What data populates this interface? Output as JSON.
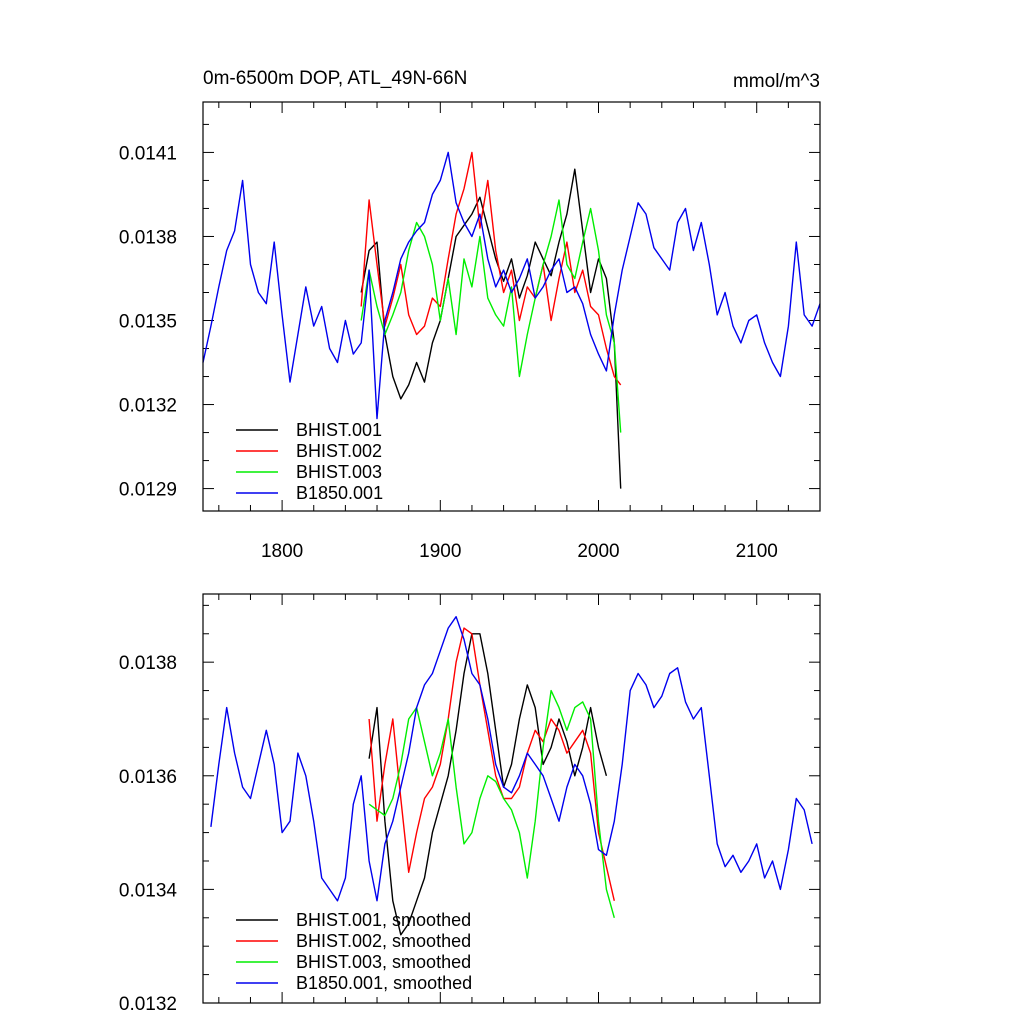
{
  "chart_data": [
    {
      "type": "line",
      "title": "0m-6500m DOP, ATL_49N-66N",
      "units": "mmol/m^3",
      "xlim": [
        1750,
        2140
      ],
      "ylim": [
        0.01282,
        0.01428
      ],
      "xticks": [
        1800,
        1900,
        2000,
        2100
      ],
      "xtick_labels": [
        "1800",
        "1900",
        "2000",
        "2100"
      ],
      "yticks": [
        0.0129,
        0.0132,
        0.0135,
        0.0138,
        0.0141
      ],
      "ytick_labels": [
        "0.0129",
        "0.0132",
        "0.0135",
        "0.0138",
        "0.0141"
      ],
      "legend_position": "bottom-left",
      "series": [
        {
          "name": "BHIST.001",
          "color": "#000000",
          "x": [
            1850,
            1855,
            1860,
            1865,
            1870,
            1875,
            1880,
            1885,
            1890,
            1895,
            1900,
            1905,
            1910,
            1915,
            1920,
            1925,
            1930,
            1935,
            1940,
            1945,
            1950,
            1955,
            1960,
            1965,
            1970,
            1975,
            1980,
            1985,
            1990,
            1995,
            2000,
            2005,
            2010,
            2014
          ],
          "y": [
            0.0136,
            0.01375,
            0.01378,
            0.01345,
            0.0133,
            0.01322,
            0.01327,
            0.01335,
            0.01328,
            0.01342,
            0.0135,
            0.01365,
            0.0138,
            0.01384,
            0.01388,
            0.01394,
            0.01383,
            0.01372,
            0.01364,
            0.01372,
            0.01358,
            0.01366,
            0.01378,
            0.01372,
            0.01366,
            0.01378,
            0.01388,
            0.01404,
            0.01382,
            0.0136,
            0.01372,
            0.01365,
            0.01342,
            0.0129
          ]
        },
        {
          "name": "BHIST.002",
          "color": "#ff0000",
          "x": [
            1850,
            1855,
            1860,
            1865,
            1870,
            1875,
            1880,
            1885,
            1890,
            1895,
            1900,
            1905,
            1910,
            1915,
            1920,
            1925,
            1930,
            1935,
            1940,
            1945,
            1950,
            1955,
            1960,
            1965,
            1970,
            1975,
            1980,
            1985,
            1990,
            1995,
            2000,
            2005,
            2010,
            2014
          ],
          "y": [
            0.01355,
            0.01393,
            0.0137,
            0.01348,
            0.01358,
            0.0137,
            0.01352,
            0.01345,
            0.01348,
            0.01358,
            0.01355,
            0.01372,
            0.01388,
            0.01397,
            0.0141,
            0.01383,
            0.014,
            0.01375,
            0.0136,
            0.01368,
            0.0135,
            0.01362,
            0.01358,
            0.0137,
            0.0135,
            0.01365,
            0.01378,
            0.0136,
            0.01368,
            0.01355,
            0.01352,
            0.0134,
            0.0133,
            0.01327
          ]
        },
        {
          "name": "BHIST.003",
          "color": "#00ee00",
          "x": [
            1850,
            1855,
            1860,
            1865,
            1870,
            1875,
            1880,
            1885,
            1890,
            1895,
            1900,
            1905,
            1910,
            1915,
            1920,
            1925,
            1930,
            1935,
            1940,
            1945,
            1950,
            1955,
            1960,
            1965,
            1970,
            1975,
            1980,
            1985,
            1990,
            1995,
            2000,
            2005,
            2010,
            2014
          ],
          "y": [
            0.0135,
            0.01368,
            0.01355,
            0.01345,
            0.01352,
            0.0136,
            0.01375,
            0.01385,
            0.0138,
            0.0137,
            0.0135,
            0.01365,
            0.01345,
            0.01372,
            0.01362,
            0.0138,
            0.01358,
            0.01352,
            0.01348,
            0.01362,
            0.0133,
            0.01345,
            0.01358,
            0.0137,
            0.0138,
            0.01393,
            0.0137,
            0.01365,
            0.01378,
            0.0139,
            0.01375,
            0.01352,
            0.01342,
            0.0131
          ]
        },
        {
          "name": "B1850.001",
          "color": "#0000ee",
          "x": [
            1750,
            1755,
            1760,
            1765,
            1770,
            1775,
            1780,
            1785,
            1790,
            1795,
            1800,
            1805,
            1810,
            1815,
            1820,
            1825,
            1830,
            1835,
            1840,
            1845,
            1850,
            1855,
            1860,
            1865,
            1870,
            1875,
            1880,
            1885,
            1890,
            1895,
            1900,
            1905,
            1910,
            1915,
            1920,
            1925,
            1930,
            1935,
            1940,
            1945,
            1950,
            1955,
            1960,
            1965,
            1970,
            1975,
            1980,
            1985,
            1990,
            1995,
            2000,
            2005,
            2010,
            2015,
            2020,
            2025,
            2030,
            2035,
            2040,
            2045,
            2050,
            2055,
            2060,
            2065,
            2070,
            2075,
            2080,
            2085,
            2090,
            2095,
            2100,
            2105,
            2110,
            2115,
            2120,
            2125,
            2130,
            2135,
            2140
          ],
          "y": [
            0.01335,
            0.01348,
            0.01362,
            0.01375,
            0.01382,
            0.014,
            0.0137,
            0.0136,
            0.01356,
            0.01378,
            0.01352,
            0.01328,
            0.01345,
            0.01362,
            0.01348,
            0.01355,
            0.0134,
            0.01335,
            0.0135,
            0.01338,
            0.01342,
            0.01368,
            0.01315,
            0.0135,
            0.0136,
            0.01372,
            0.01378,
            0.01382,
            0.01385,
            0.01395,
            0.014,
            0.0141,
            0.01392,
            0.01385,
            0.0138,
            0.01388,
            0.01372,
            0.01362,
            0.01368,
            0.0136,
            0.01365,
            0.01372,
            0.01358,
            0.01362,
            0.01368,
            0.01372,
            0.0136,
            0.01362,
            0.01356,
            0.01345,
            0.01338,
            0.01332,
            0.01352,
            0.01368,
            0.0138,
            0.01392,
            0.01388,
            0.01376,
            0.01372,
            0.01368,
            0.01385,
            0.0139,
            0.01375,
            0.01385,
            0.0137,
            0.01352,
            0.0136,
            0.01348,
            0.01342,
            0.0135,
            0.01352,
            0.01342,
            0.01335,
            0.0133,
            0.01348,
            0.01378,
            0.01352,
            0.01348,
            0.01356
          ]
        }
      ]
    },
    {
      "type": "line",
      "xlim": [
        1750,
        2140
      ],
      "ylim": [
        0.0132,
        0.01392
      ],
      "xticks": [
        1800,
        1900,
        2000,
        2100
      ],
      "yticks": [
        0.0132,
        0.0134,
        0.0136,
        0.0138
      ],
      "ytick_labels": [
        "0.0132",
        "0.0134",
        "0.0136",
        "0.0138"
      ],
      "legend_position": "bottom-left",
      "series": [
        {
          "name": "BHIST.001, smoothed",
          "color": "#000000",
          "x": [
            1855,
            1860,
            1865,
            1870,
            1875,
            1880,
            1885,
            1890,
            1895,
            1900,
            1905,
            1910,
            1915,
            1920,
            1925,
            1930,
            1935,
            1940,
            1945,
            1950,
            1955,
            1960,
            1965,
            1970,
            1975,
            1980,
            1985,
            1990,
            1995,
            2000,
            2005
          ],
          "y": [
            0.01363,
            0.01372,
            0.01352,
            0.01338,
            0.01332,
            0.01334,
            0.01338,
            0.01342,
            0.0135,
            0.01355,
            0.0136,
            0.01368,
            0.01378,
            0.01385,
            0.01385,
            0.01378,
            0.01368,
            0.01358,
            0.01362,
            0.0137,
            0.01376,
            0.01372,
            0.01362,
            0.01365,
            0.0137,
            0.01366,
            0.0136,
            0.01365,
            0.01372,
            0.01365,
            0.0136
          ]
        },
        {
          "name": "BHIST.002, smoothed",
          "color": "#ff0000",
          "x": [
            1855,
            1860,
            1865,
            1870,
            1875,
            1880,
            1885,
            1890,
            1895,
            1900,
            1905,
            1910,
            1915,
            1920,
            1925,
            1930,
            1935,
            1940,
            1945,
            1950,
            1955,
            1960,
            1965,
            1970,
            1975,
            1980,
            1985,
            1990,
            1995,
            2000,
            2005,
            2010
          ],
          "y": [
            0.0137,
            0.01352,
            0.01362,
            0.0137,
            0.01356,
            0.01343,
            0.0135,
            0.01356,
            0.01358,
            0.01362,
            0.0137,
            0.0138,
            0.01386,
            0.01385,
            0.01376,
            0.01368,
            0.0136,
            0.01356,
            0.01356,
            0.01358,
            0.01364,
            0.01368,
            0.01366,
            0.0137,
            0.01368,
            0.01364,
            0.01366,
            0.01368,
            0.01364,
            0.0135,
            0.01344,
            0.01338
          ]
        },
        {
          "name": "BHIST.003, smoothed",
          "color": "#00ee00",
          "x": [
            1855,
            1860,
            1865,
            1870,
            1875,
            1880,
            1885,
            1890,
            1895,
            1900,
            1905,
            1910,
            1915,
            1920,
            1925,
            1930,
            1935,
            1940,
            1945,
            1950,
            1955,
            1960,
            1965,
            1970,
            1975,
            1980,
            1985,
            1990,
            1995,
            2000,
            2005,
            2010
          ],
          "y": [
            0.01355,
            0.01354,
            0.01353,
            0.01356,
            0.01362,
            0.0137,
            0.01372,
            0.01366,
            0.0136,
            0.01364,
            0.0137,
            0.01358,
            0.01348,
            0.0135,
            0.01356,
            0.0136,
            0.01359,
            0.01356,
            0.01354,
            0.0135,
            0.01342,
            0.01352,
            0.01365,
            0.01375,
            0.01372,
            0.01368,
            0.01372,
            0.01373,
            0.0137,
            0.01352,
            0.0134,
            0.01335
          ]
        },
        {
          "name": "B1850.001, smoothed",
          "color": "#0000ee",
          "x": [
            1755,
            1760,
            1765,
            1770,
            1775,
            1780,
            1785,
            1790,
            1795,
            1800,
            1805,
            1810,
            1815,
            1820,
            1825,
            1830,
            1835,
            1840,
            1845,
            1850,
            1855,
            1860,
            1865,
            1870,
            1875,
            1880,
            1885,
            1890,
            1895,
            1900,
            1905,
            1910,
            1915,
            1920,
            1925,
            1930,
            1935,
            1940,
            1945,
            1950,
            1955,
            1960,
            1965,
            1970,
            1975,
            1980,
            1985,
            1990,
            1995,
            2000,
            2005,
            2010,
            2015,
            2020,
            2025,
            2030,
            2035,
            2040,
            2045,
            2050,
            2055,
            2060,
            2065,
            2070,
            2075,
            2080,
            2085,
            2090,
            2095,
            2100,
            2105,
            2110,
            2115,
            2120,
            2125,
            2130,
            2135
          ],
          "y": [
            0.01351,
            0.01362,
            0.01372,
            0.01364,
            0.01358,
            0.01356,
            0.01362,
            0.01368,
            0.01362,
            0.0135,
            0.01352,
            0.01364,
            0.0136,
            0.01352,
            0.01342,
            0.0134,
            0.01338,
            0.01342,
            0.01355,
            0.0136,
            0.01345,
            0.01338,
            0.01348,
            0.01352,
            0.01358,
            0.01364,
            0.01372,
            0.01376,
            0.01378,
            0.01382,
            0.01386,
            0.01388,
            0.01384,
            0.01378,
            0.01376,
            0.0137,
            0.01362,
            0.01358,
            0.01357,
            0.0136,
            0.01364,
            0.01362,
            0.0136,
            0.01356,
            0.01352,
            0.01358,
            0.01362,
            0.0136,
            0.01355,
            0.01347,
            0.01346,
            0.01352,
            0.01362,
            0.01375,
            0.01378,
            0.01376,
            0.01372,
            0.01374,
            0.01378,
            0.01379,
            0.01373,
            0.0137,
            0.01372,
            0.0136,
            0.01348,
            0.01344,
            0.01346,
            0.01343,
            0.01345,
            0.01348,
            0.01342,
            0.01345,
            0.0134,
            0.01347,
            0.01356,
            0.01354,
            0.01348
          ]
        }
      ]
    }
  ]
}
